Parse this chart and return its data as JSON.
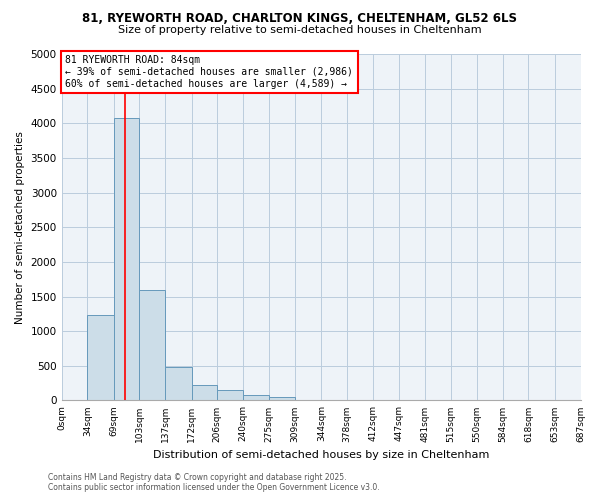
{
  "title_line1": "81, RYEWORTH ROAD, CHARLTON KINGS, CHELTENHAM, GL52 6LS",
  "title_line2": "Size of property relative to semi-detached houses in Cheltenham",
  "xlabel": "Distribution of semi-detached houses by size in Cheltenham",
  "ylabel": "Number of semi-detached properties",
  "bin_labels": [
    "0sqm",
    "34sqm",
    "69sqm",
    "103sqm",
    "137sqm",
    "172sqm",
    "206sqm",
    "240sqm",
    "275sqm",
    "309sqm",
    "344sqm",
    "378sqm",
    "412sqm",
    "447sqm",
    "481sqm",
    "515sqm",
    "550sqm",
    "584sqm",
    "618sqm",
    "653sqm",
    "687sqm"
  ],
  "bar_values": [
    10,
    1240,
    4070,
    1590,
    480,
    220,
    150,
    80,
    50,
    0,
    0,
    0,
    0,
    0,
    0,
    0,
    0,
    0,
    0,
    0
  ],
  "bar_color": "#ccdde8",
  "bar_edge_color": "#6699bb",
  "grid_color": "#bbccdd",
  "property_line_x": 84,
  "annotation_text": "81 RYEWORTH ROAD: 84sqm\n← 39% of semi-detached houses are smaller (2,986)\n60% of semi-detached houses are larger (4,589) →",
  "footer_line1": "Contains HM Land Registry data © Crown copyright and database right 2025.",
  "footer_line2": "Contains public sector information licensed under the Open Government Licence v3.0.",
  "ylim": [
    0,
    5000
  ],
  "yticks": [
    0,
    500,
    1000,
    1500,
    2000,
    2500,
    3000,
    3500,
    4000,
    4500,
    5000
  ],
  "bin_edges": [
    0,
    34,
    69,
    103,
    137,
    172,
    206,
    240,
    275,
    309,
    344,
    378,
    412,
    447,
    481,
    515,
    550,
    584,
    618,
    653,
    687
  ],
  "n_bins": 20
}
